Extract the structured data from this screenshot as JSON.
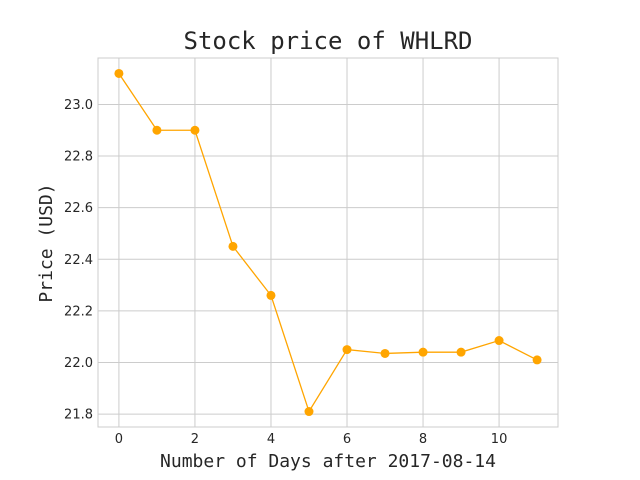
{
  "chart_data": {
    "type": "line",
    "title": "Stock price of WHLRD",
    "xlabel": "Number of Days after 2017-08-14",
    "ylabel": "Price (USD)",
    "xlim": [
      -0.55,
      11.55
    ],
    "ylim": [
      21.75,
      23.18
    ],
    "grid": true,
    "x_ticks": [
      0,
      2,
      4,
      6,
      8,
      10
    ],
    "x_tick_labels": [
      "0",
      "2",
      "4",
      "6",
      "8",
      "10"
    ],
    "y_ticks": [
      21.8,
      22.0,
      22.2,
      22.4,
      22.6,
      22.8,
      23.0
    ],
    "y_tick_labels": [
      "21.8",
      "22.0",
      "22.2",
      "22.4",
      "22.6",
      "22.8",
      "23.0"
    ],
    "series": [
      {
        "name": "WHLRD",
        "color": "#FFA500",
        "x": [
          0,
          1,
          2,
          3,
          4,
          5,
          6,
          7,
          8,
          9,
          10,
          11
        ],
        "values": [
          23.12,
          22.9,
          22.9,
          22.45,
          22.26,
          21.81,
          22.05,
          22.035,
          22.04,
          22.04,
          22.085,
          22.01
        ]
      }
    ]
  }
}
